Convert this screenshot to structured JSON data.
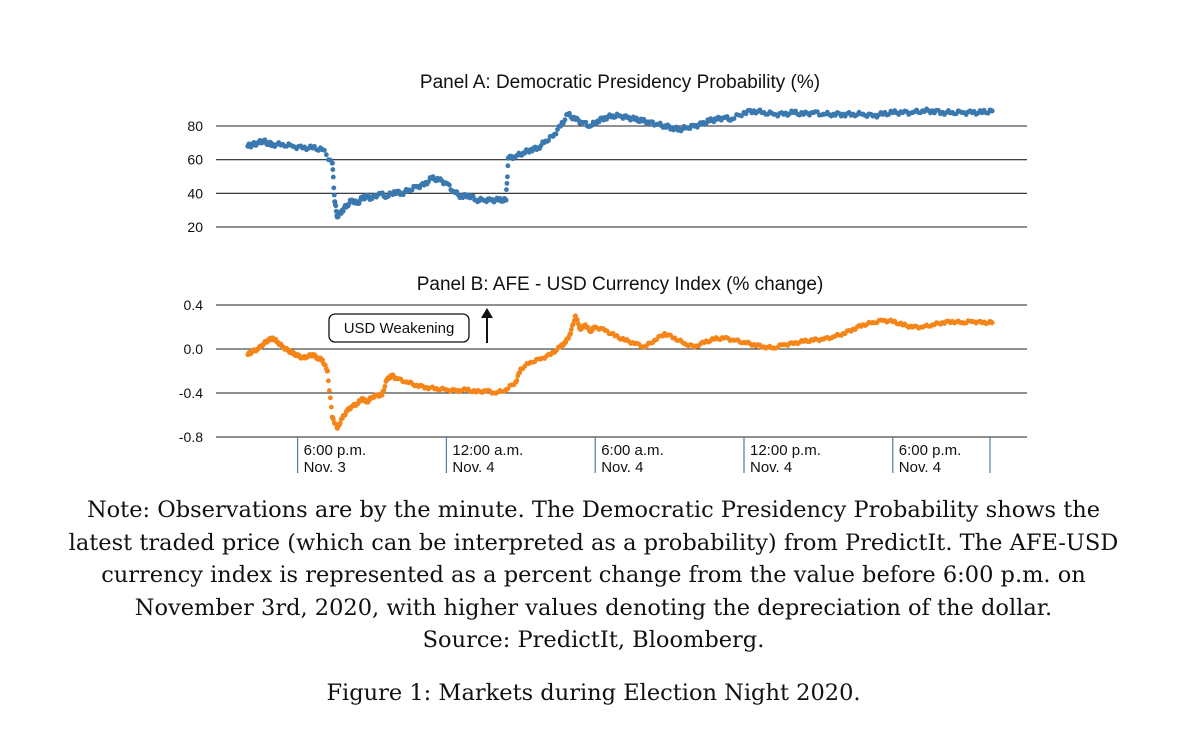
{
  "chart_data": [
    {
      "type": "scatter",
      "title": "Panel A:  Democratic Presidency Probability (%)",
      "ylim": [
        20,
        90
      ],
      "yticks": [
        "80",
        "60",
        "40",
        "20"
      ],
      "ytick_values": [
        80,
        60,
        40,
        20
      ],
      "x_unit": "hours after 4:00 p.m. Nov. 3",
      "xlim": [
        0,
        30
      ],
      "color": "#3a78b0",
      "points": [
        [
          0.0,
          68
        ],
        [
          0.2,
          69
        ],
        [
          0.4,
          70
        ],
        [
          0.6,
          71
        ],
        [
          0.8,
          70
        ],
        [
          1.0,
          69
        ],
        [
          1.4,
          69
        ],
        [
          1.8,
          68
        ],
        [
          2.2,
          67
        ],
        [
          2.6,
          67
        ],
        [
          3.0,
          66
        ],
        [
          3.4,
          58
        ],
        [
          3.5,
          35
        ],
        [
          3.6,
          26
        ],
        [
          3.8,
          30
        ],
        [
          4.0,
          33
        ],
        [
          4.2,
          36
        ],
        [
          4.4,
          34
        ],
        [
          4.6,
          37
        ],
        [
          4.8,
          38
        ],
        [
          5.0,
          37
        ],
        [
          5.3,
          40
        ],
        [
          5.6,
          38
        ],
        [
          5.9,
          41
        ],
        [
          6.2,
          40
        ],
        [
          6.5,
          42
        ],
        [
          6.8,
          44
        ],
        [
          7.1,
          45
        ],
        [
          7.4,
          49
        ],
        [
          7.7,
          48
        ],
        [
          8.0,
          46
        ],
        [
          8.3,
          41
        ],
        [
          8.6,
          38
        ],
        [
          8.9,
          39
        ],
        [
          9.2,
          36
        ],
        [
          9.5,
          36
        ],
        [
          9.8,
          36
        ],
        [
          10.1,
          36
        ],
        [
          10.4,
          36
        ],
        [
          10.5,
          61
        ],
        [
          10.8,
          62
        ],
        [
          11.1,
          64
        ],
        [
          11.4,
          66
        ],
        [
          11.7,
          67
        ],
        [
          12.0,
          71
        ],
        [
          12.3,
          74
        ],
        [
          12.6,
          80
        ],
        [
          12.9,
          87
        ],
        [
          13.2,
          84
        ],
        [
          13.5,
          82
        ],
        [
          13.8,
          80
        ],
        [
          14.1,
          83
        ],
        [
          14.4,
          85
        ],
        [
          14.7,
          86
        ],
        [
          15.0,
          86
        ],
        [
          15.3,
          85
        ],
        [
          15.6,
          84
        ],
        [
          15.9,
          83
        ],
        [
          16.2,
          82
        ],
        [
          16.5,
          81
        ],
        [
          16.8,
          80
        ],
        [
          17.1,
          79
        ],
        [
          17.4,
          78
        ],
        [
          17.7,
          79
        ],
        [
          18.0,
          80
        ],
        [
          18.3,
          81
        ],
        [
          18.6,
          83
        ],
        [
          18.9,
          84
        ],
        [
          19.2,
          85
        ],
        [
          19.5,
          84
        ],
        [
          20.0,
          88
        ],
        [
          20.4,
          89
        ],
        [
          20.8,
          88
        ],
        [
          21.2,
          87
        ],
        [
          21.6,
          87
        ],
        [
          22.0,
          88
        ],
        [
          22.4,
          87
        ],
        [
          22.8,
          88
        ],
        [
          23.2,
          87
        ],
        [
          23.6,
          87
        ],
        [
          24.0,
          87
        ],
        [
          24.4,
          87
        ],
        [
          24.8,
          87
        ],
        [
          25.2,
          86
        ],
        [
          25.6,
          87
        ],
        [
          26.0,
          88
        ],
        [
          26.4,
          88
        ],
        [
          26.8,
          88
        ],
        [
          27.2,
          89
        ],
        [
          27.6,
          89
        ],
        [
          28.0,
          88
        ],
        [
          28.4,
          88
        ],
        [
          28.8,
          88
        ],
        [
          29.2,
          88
        ],
        [
          29.6,
          88
        ],
        [
          30.0,
          89
        ]
      ]
    },
    {
      "type": "scatter",
      "title": "Panel B:  AFE - USD Currency Index (% change)",
      "ylim": [
        -0.8,
        0.4
      ],
      "yticks": [
        "0.4",
        "0.0",
        "-0.4",
        "-0.8"
      ],
      "ytick_values": [
        0.4,
        0.0,
        -0.4,
        -0.8
      ],
      "x_unit": "hours after 4:00 p.m. Nov. 3",
      "xlim": [
        0,
        30
      ],
      "color": "#f58518",
      "annotation": "USD Weakening",
      "points": [
        [
          0.0,
          -0.05
        ],
        [
          0.2,
          -0.02
        ],
        [
          0.4,
          0.0
        ],
        [
          0.6,
          0.04
        ],
        [
          0.8,
          0.08
        ],
        [
          1.0,
          0.1
        ],
        [
          1.2,
          0.06
        ],
        [
          1.4,
          0.02
        ],
        [
          1.6,
          -0.01
        ],
        [
          1.8,
          -0.04
        ],
        [
          2.0,
          -0.06
        ],
        [
          2.2,
          -0.08
        ],
        [
          2.4,
          -0.07
        ],
        [
          2.6,
          -0.05
        ],
        [
          2.8,
          -0.08
        ],
        [
          3.0,
          -0.1
        ],
        [
          3.2,
          -0.2
        ],
        [
          3.4,
          -0.62
        ],
        [
          3.6,
          -0.72
        ],
        [
          3.8,
          -0.63
        ],
        [
          4.0,
          -0.56
        ],
        [
          4.2,
          -0.52
        ],
        [
          4.4,
          -0.5
        ],
        [
          4.6,
          -0.45
        ],
        [
          4.8,
          -0.48
        ],
        [
          5.0,
          -0.44
        ],
        [
          5.2,
          -0.42
        ],
        [
          5.4,
          -0.42
        ],
        [
          5.6,
          -0.28
        ],
        [
          5.8,
          -0.24
        ],
        [
          6.0,
          -0.27
        ],
        [
          6.4,
          -0.3
        ],
        [
          6.8,
          -0.33
        ],
        [
          7.2,
          -0.35
        ],
        [
          7.6,
          -0.36
        ],
        [
          8.0,
          -0.37
        ],
        [
          8.4,
          -0.38
        ],
        [
          8.8,
          -0.37
        ],
        [
          9.2,
          -0.39
        ],
        [
          9.6,
          -0.38
        ],
        [
          10.0,
          -0.4
        ],
        [
          10.4,
          -0.37
        ],
        [
          10.8,
          -0.3
        ],
        [
          11.0,
          -0.18
        ],
        [
          11.4,
          -0.12
        ],
        [
          11.8,
          -0.09
        ],
        [
          12.2,
          -0.05
        ],
        [
          12.6,
          0.02
        ],
        [
          12.8,
          0.06
        ],
        [
          13.0,
          0.14
        ],
        [
          13.2,
          0.3
        ],
        [
          13.4,
          0.18
        ],
        [
          13.6,
          0.22
        ],
        [
          13.8,
          0.16
        ],
        [
          14.0,
          0.2
        ],
        [
          14.4,
          0.17
        ],
        [
          14.8,
          0.12
        ],
        [
          15.2,
          0.08
        ],
        [
          15.6,
          0.05
        ],
        [
          16.0,
          0.02
        ],
        [
          16.4,
          0.08
        ],
        [
          16.8,
          0.14
        ],
        [
          17.2,
          0.1
        ],
        [
          17.6,
          0.05
        ],
        [
          18.0,
          0.02
        ],
        [
          18.4,
          0.06
        ],
        [
          18.8,
          0.09
        ],
        [
          19.2,
          0.1
        ],
        [
          19.6,
          0.08
        ],
        [
          20.0,
          0.06
        ],
        [
          20.4,
          0.04
        ],
        [
          20.8,
          0.02
        ],
        [
          21.2,
          0.01
        ],
        [
          21.6,
          0.04
        ],
        [
          22.0,
          0.05
        ],
        [
          22.4,
          0.07
        ],
        [
          22.8,
          0.08
        ],
        [
          23.2,
          0.09
        ],
        [
          23.6,
          0.11
        ],
        [
          24.0,
          0.14
        ],
        [
          24.4,
          0.18
        ],
        [
          24.8,
          0.22
        ],
        [
          25.2,
          0.24
        ],
        [
          25.6,
          0.26
        ],
        [
          26.0,
          0.25
        ],
        [
          26.4,
          0.22
        ],
        [
          26.8,
          0.2
        ],
        [
          27.2,
          0.2
        ],
        [
          27.6,
          0.22
        ],
        [
          28.0,
          0.24
        ],
        [
          28.4,
          0.25
        ],
        [
          28.8,
          0.24
        ],
        [
          29.2,
          0.25
        ],
        [
          29.6,
          0.24
        ],
        [
          30.0,
          0.24
        ]
      ]
    }
  ],
  "xticks": [
    {
      "x": 2,
      "line1": "6:00 p.m.",
      "line2": "Nov. 3"
    },
    {
      "x": 8,
      "line1": "12:00 a.m.",
      "line2": "Nov. 4"
    },
    {
      "x": 14,
      "line1": "6:00 a.m.",
      "line2": "Nov. 4"
    },
    {
      "x": 20,
      "line1": "12:00 p.m.",
      "line2": "Nov. 4"
    },
    {
      "x": 26,
      "line1": "6:00 p.m.",
      "line2": "Nov. 4"
    }
  ],
  "note": {
    "line1": "Note: Observations are by the minute. The Democratic Presidency Probability shows the",
    "line2": "latest traded price (which can be interpreted as a probability) from PredictIt. The AFE-USD",
    "line3": "currency index is represented as a percent change from the value before 6:00 p.m. on",
    "line4": "November 3rd, 2020, with higher values denoting the depreciation of the dollar.",
    "line5": "Source: PredictIt, Bloomberg."
  },
  "caption": "Figure 1: Markets during Election Night 2020."
}
